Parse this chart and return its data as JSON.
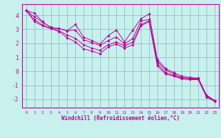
{
  "xlabel": "Windchill (Refroidissement éolien,°C)",
  "bg_color": "#c8f0ec",
  "grid_color": "#90c0c8",
  "line_color": "#bb0099",
  "spine_color": "#bb0099",
  "xlim": [
    -0.5,
    23.5
  ],
  "ylim": [
    -2.6,
    4.8
  ],
  "xticks": [
    0,
    1,
    2,
    3,
    4,
    5,
    6,
    7,
    8,
    9,
    10,
    11,
    12,
    13,
    14,
    15,
    16,
    17,
    18,
    19,
    20,
    21,
    22,
    23
  ],
  "yticks": [
    -2,
    -1,
    0,
    1,
    2,
    3,
    4
  ],
  "series": [
    [
      4.35,
      4.15,
      3.55,
      3.1,
      3.05,
      2.9,
      3.35,
      2.45,
      2.2,
      1.95,
      2.55,
      2.95,
      2.1,
      2.95,
      3.75,
      4.1,
      0.85,
      0.2,
      -0.1,
      -0.35,
      -0.45,
      -0.5,
      -1.7,
      -2.1
    ],
    [
      4.35,
      3.9,
      3.5,
      3.15,
      3.05,
      2.9,
      2.95,
      2.25,
      2.05,
      1.85,
      2.2,
      2.45,
      1.95,
      2.35,
      3.6,
      3.7,
      0.7,
      0.1,
      -0.2,
      -0.45,
      -0.5,
      -0.5,
      -1.75,
      -2.1
    ],
    [
      4.35,
      3.7,
      3.3,
      3.05,
      2.9,
      2.6,
      2.35,
      1.9,
      1.65,
      1.5,
      1.9,
      2.1,
      1.8,
      2.1,
      3.35,
      3.6,
      0.55,
      -0.1,
      -0.3,
      -0.5,
      -0.55,
      -0.55,
      -1.8,
      -2.1
    ],
    [
      4.35,
      3.55,
      3.25,
      3.05,
      2.85,
      2.4,
      2.1,
      1.6,
      1.45,
      1.25,
      1.75,
      1.95,
      1.65,
      1.9,
      3.25,
      3.55,
      0.4,
      -0.2,
      -0.35,
      -0.55,
      -0.6,
      -0.6,
      -1.85,
      -2.15
    ]
  ]
}
